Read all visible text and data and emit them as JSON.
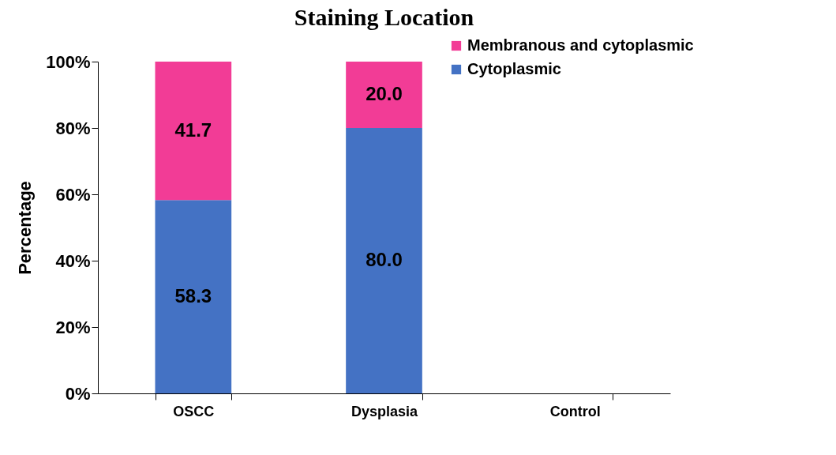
{
  "chart_data": {
    "type": "bar",
    "title": "Staining Location",
    "ylabel": "Percentage",
    "categories": [
      "OSCC",
      "Dysplasia",
      "Control"
    ],
    "stacked": true,
    "series": [
      {
        "name": "Cytoplasmic",
        "color": "#4472c4",
        "values": [
          58.3,
          80.0,
          null
        ],
        "value_labels": [
          "58.3",
          "80.0",
          null
        ]
      },
      {
        "name": "Membranous and cytoplasmic",
        "color": "#f23c96",
        "values": [
          41.7,
          20.0,
          null
        ],
        "value_labels": [
          "41.7",
          "20.0",
          null
        ]
      }
    ],
    "ylim": [
      0,
      100
    ],
    "yticks": [
      {
        "value": 0,
        "label": "0%"
      },
      {
        "value": 20,
        "label": "20%"
      },
      {
        "value": 40,
        "label": "40%"
      },
      {
        "value": 60,
        "label": "60%"
      },
      {
        "value": 80,
        "label": "80%"
      },
      {
        "value": 100,
        "label": "100%"
      }
    ],
    "grid": false,
    "legend": "top right"
  }
}
